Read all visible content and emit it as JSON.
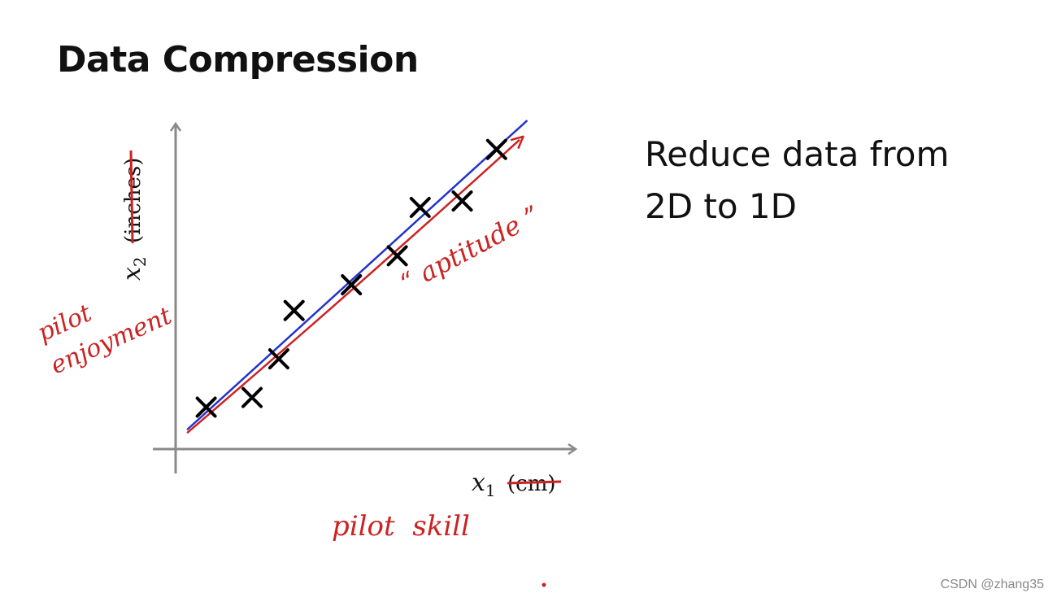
{
  "title": "Data Compression",
  "side_note": {
    "line1": "Reduce data from",
    "line2": "2D to 1D"
  },
  "axes": {
    "x_label_math": "x",
    "x_label_sub": "1",
    "x_unit_struck": "(cm)",
    "y_label_math": "x",
    "y_label_sub": "2",
    "y_unit_struck": "(inches)"
  },
  "annotations": {
    "x_handwritten": "pilot  skill",
    "y_handwritten_line1": "pilot",
    "y_handwritten_line2": "enjoyment",
    "direction_label": "“ aptitude ”"
  },
  "watermark": "CSDN @zhang35",
  "colors": {
    "annotation_red": "#cc2222",
    "fit_line_blue": "#2233cc",
    "axis_gray": "#8a8a8a",
    "marker_black": "#000000"
  },
  "chart_data": {
    "type": "scatter",
    "title": "",
    "xlabel": "x1 (cm)",
    "ylabel": "x2 (inches)",
    "xlim": [
      0,
      10
    ],
    "ylim": [
      0,
      10
    ],
    "grid": false,
    "points": [
      {
        "x": 0.8,
        "y": 1.3
      },
      {
        "x": 2.0,
        "y": 1.6
      },
      {
        "x": 2.7,
        "y": 2.8
      },
      {
        "x": 3.1,
        "y": 4.3
      },
      {
        "x": 4.6,
        "y": 5.1
      },
      {
        "x": 5.8,
        "y": 6.0
      },
      {
        "x": 6.4,
        "y": 7.5
      },
      {
        "x": 7.5,
        "y": 7.7
      },
      {
        "x": 8.4,
        "y": 9.3
      }
    ],
    "fit_line": {
      "x": [
        0.3,
        9.2
      ],
      "y": [
        0.6,
        10.2
      ]
    },
    "projection_direction": {
      "x": [
        0.3,
        9.0
      ],
      "y": [
        0.5,
        9.6
      ]
    }
  }
}
